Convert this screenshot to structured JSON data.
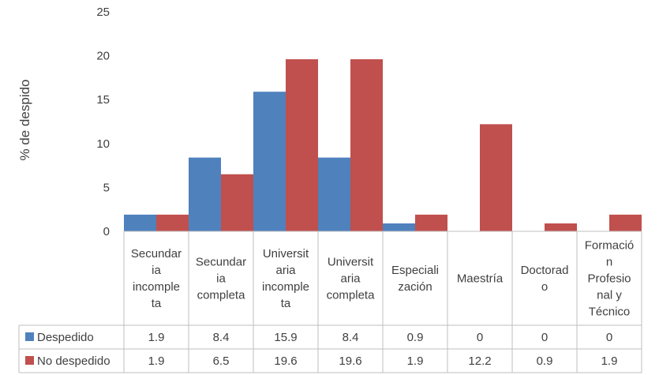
{
  "chart_data": {
    "type": "bar",
    "title": "",
    "xlabel": "",
    "ylabel": "% de despido",
    "ylim": [
      0,
      25
    ],
    "yticks": [
      0,
      5,
      10,
      15,
      20,
      25
    ],
    "grid": false,
    "legend": "data-table-rows",
    "categories": [
      "Secundaria incompleta",
      "Secundaria completa",
      "Universitaria incompleta",
      "Universitaria completa",
      "Especialización",
      "Maestría",
      "Doctorado",
      "Formación Profesional y Técnico"
    ],
    "category_label_lines": [
      [
        "Secundar",
        "ia",
        "incomple",
        "ta"
      ],
      [
        "Secundar",
        "ia",
        "completa"
      ],
      [
        "Universit",
        "aria",
        "incomple",
        "ta"
      ],
      [
        "Universit",
        "aria",
        "completa"
      ],
      [
        "Especiali",
        "zación"
      ],
      [
        "Maestría"
      ],
      [
        "Doctorad",
        "o"
      ],
      [
        "Formació",
        "n",
        "Profesio",
        "nal y",
        "Técnico"
      ]
    ],
    "series": [
      {
        "name": "Despedido",
        "color": "#4F81BD",
        "values": [
          1.9,
          8.4,
          15.9,
          8.4,
          0.9,
          0,
          0,
          0
        ],
        "labels": [
          "1.9",
          "8.4",
          "15.9",
          "8.4",
          "0.9",
          "0",
          "0",
          "0"
        ]
      },
      {
        "name": "No despedido",
        "color": "#C0504D",
        "values": [
          1.9,
          6.5,
          19.6,
          19.6,
          1.9,
          12.2,
          0.9,
          1.9
        ],
        "labels": [
          "1.9",
          "6.5",
          "19.6",
          "19.6",
          "1.9",
          "12.2",
          "0.9",
          "1.9"
        ]
      }
    ]
  }
}
